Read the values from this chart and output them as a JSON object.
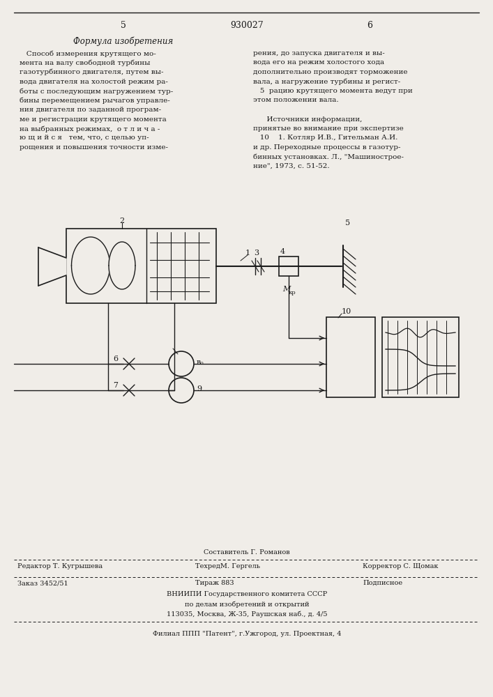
{
  "bg_color": "#f0ede8",
  "page_num_left": "5",
  "patent_num": "930027",
  "page_num_right": "6",
  "formula_title": "Формула изобретения",
  "left_text_lines": [
    "   Способ измерения крутящего мо-",
    "мента на валу свободной турбины",
    "газотурбинного двигателя, путем вы-",
    "вода двигателя на холостой режим ра-",
    "боты с последующим нагружением тур-",
    "бины перемещением рычагов управле-",
    "ния двигателя по заданной програм-",
    "ме и регистрации крутящего момента",
    "на выбранных режимах,  о т л и ч а -",
    "ю щ и й с я   тем, что, с целью уп-",
    "рощения и повышения точности изме-"
  ],
  "right_text_lines": [
    "рения, до запуска двигателя и вы-",
    "вода его на режим холостого хода",
    "дополнительно производят торможение",
    "вала, а нагружение турбины и регист-",
    "   5  рацию крутящего момента ведут при",
    "этом положении вала.",
    "",
    "      Источники информации,",
    "принятые во внимание при экспертизе",
    "   10    1. Котляр И.В., Гительман А.И.",
    "и др. Переходные процессы в газотур-",
    "бинных установках. Л., \"Машинострое-",
    "ние\", 1973, с. 51-52."
  ],
  "footer": {
    "sostavitel": "Составитель Г. Романов",
    "redaktor": "Редактор Т. Кугрышева",
    "tehred": "ТехредМ. Гергель",
    "korrektor": "Корректор С. Щомак",
    "zakaz": "Заказ 3452/51",
    "tirazh": "Тираж 883",
    "podpisnoe": "Подписное",
    "vniiipi1": "ВНИИПИ Государственного комитета СССР",
    "vniiipi2": "по делам изобретений и открытий",
    "vniiipi3": "113035, Москва, Ж-35, Раушская наб., д. 4/5",
    "filial": "Филиал ППП \"Патент\", г.Ужгород, ул. Проектная, 4"
  }
}
